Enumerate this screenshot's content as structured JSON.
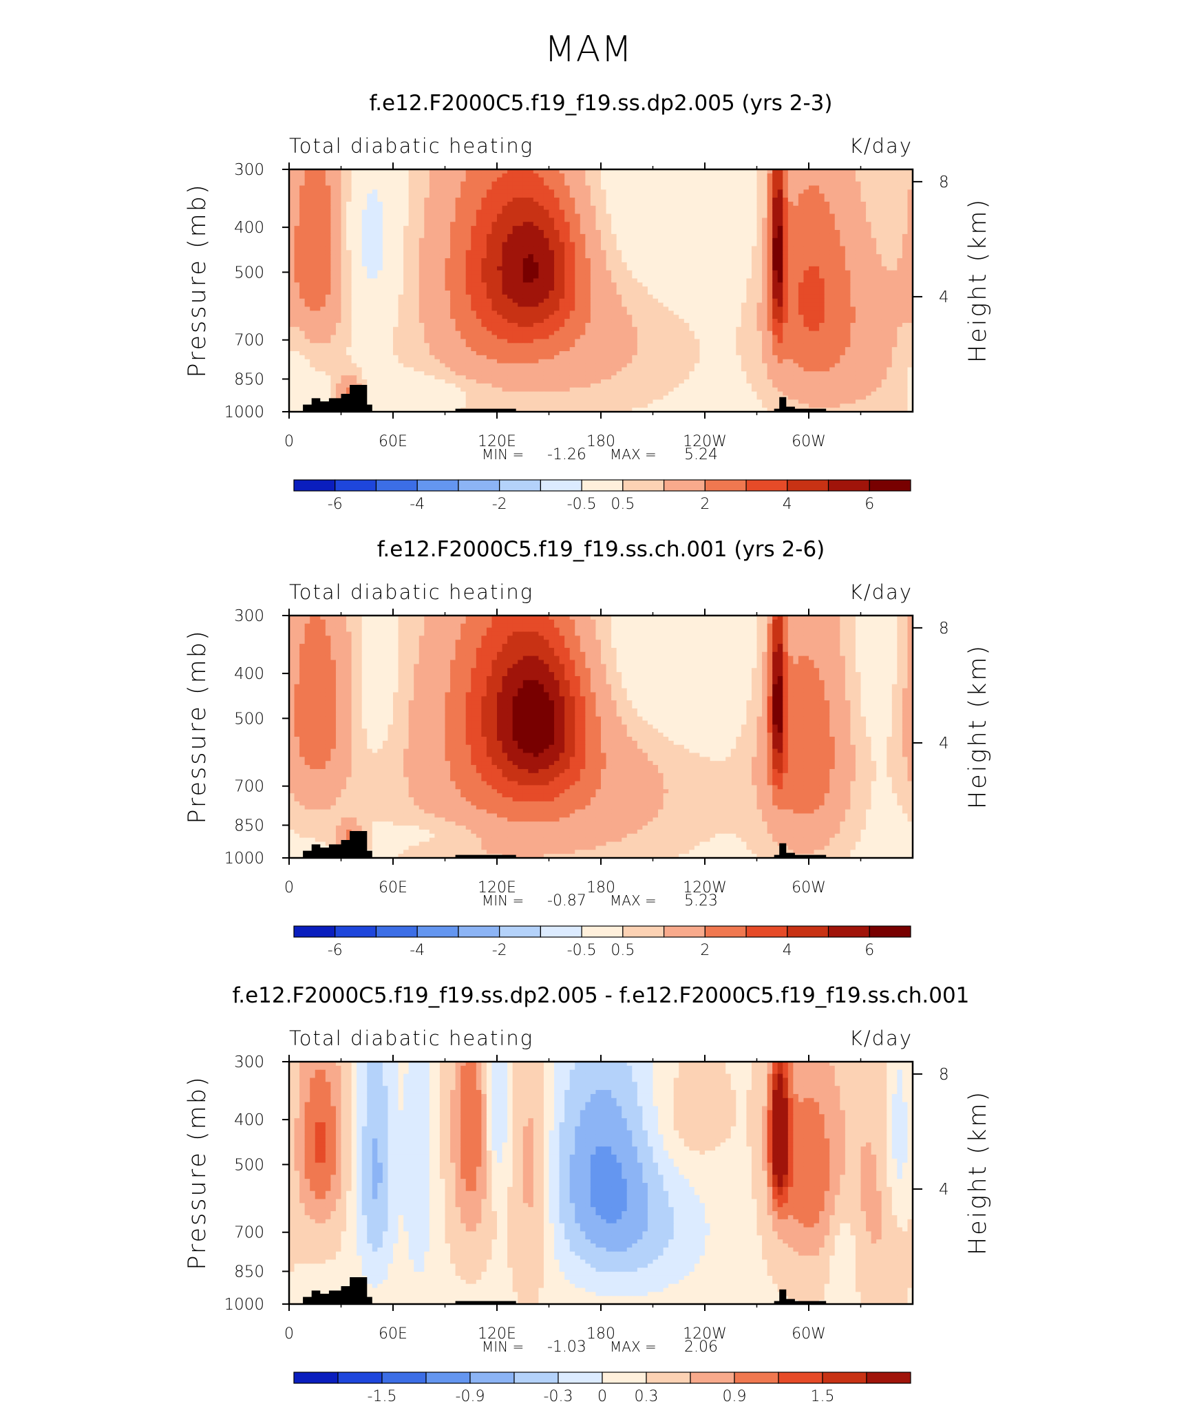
{
  "figure_title": "MAM",
  "chart_data": [
    {
      "type": "heatmap",
      "title": "f.e12.F2000C5.f19_f19.ss.dp2.005 (yrs 2-3)",
      "left_label": "Total diabatic heating",
      "right_label": "K/day",
      "ylabel": "Pressure (mb)",
      "ylabel_right": "Height (km)",
      "x_ticks": [
        "0",
        "60E",
        "120E",
        "180",
        "120W",
        "60W"
      ],
      "x_tick_values": [
        0,
        60,
        120,
        180,
        240,
        300
      ],
      "xlim": [
        0,
        360
      ],
      "y_ticks": [
        "300",
        "400",
        "500",
        "700",
        "850",
        "1000"
      ],
      "y_tick_values": [
        300,
        400,
        500,
        700,
        850,
        1000
      ],
      "ylim": [
        1000,
        300
      ],
      "right_ticks": [
        "8",
        "4"
      ],
      "right_tick_values": [
        8,
        4
      ],
      "stats_text": {
        "min_label": "MIN =",
        "min": "-1.26",
        "max_label": "MAX =",
        "max": "5.24"
      },
      "colorbar_labels": [
        "-6",
        "-4",
        "-2",
        "-0.5",
        "0.5",
        "2",
        "4",
        "6"
      ],
      "colorbar_levels": [
        -7,
        -6,
        -5,
        -4,
        -3,
        -2,
        -1,
        -0.5,
        0.5,
        1,
        2,
        3,
        4,
        5,
        6,
        7
      ],
      "colorbar_label_positions": [
        1,
        3,
        5,
        7,
        8,
        10,
        12,
        14
      ],
      "features": [
        {
          "lon": 15,
          "p": 440,
          "amp": 2.6,
          "slon": 12,
          "sp": 180
        },
        {
          "lon": 35,
          "p": 920,
          "amp": 2.2,
          "slon": 5,
          "sp": 60
        },
        {
          "lon": 48,
          "p": 430,
          "amp": -1.26,
          "slon": 10,
          "sp": 120
        },
        {
          "lon": 105,
          "p": 500,
          "amp": 0.6,
          "slon": 30,
          "sp": 300
        },
        {
          "lon": 120,
          "p": 470,
          "amp": 2.2,
          "slon": 22,
          "sp": 190
        },
        {
          "lon": 145,
          "p": 480,
          "amp": 3.6,
          "slon": 18,
          "sp": 130
        },
        {
          "lon": 160,
          "p": 680,
          "amp": 1.2,
          "slon": 45,
          "sp": 200
        },
        {
          "lon": 225,
          "p": 400,
          "amp": -0.7,
          "slon": 35,
          "sp": 130
        },
        {
          "lon": 80,
          "p": 900,
          "amp": -0.55,
          "slon": 25,
          "sp": 50
        },
        {
          "lon": 5,
          "p": 740,
          "amp": -0.5,
          "slon": 8,
          "sp": 110
        },
        {
          "lon": 282,
          "p": 440,
          "amp": 5.24,
          "slon": 3,
          "sp": 160
        },
        {
          "lon": 300,
          "p": 560,
          "amp": 2.8,
          "slon": 18,
          "sp": 240
        },
        {
          "lon": 335,
          "p": 700,
          "amp": 0.9,
          "slon": 20,
          "sp": 250
        },
        {
          "lon": 355,
          "p": 360,
          "amp": -0.3,
          "slon": 8,
          "sp": 80
        }
      ],
      "terrain": [
        [
          0,
          1000
        ],
        [
          8,
          1000
        ],
        [
          8,
          965
        ],
        [
          13,
          965
        ],
        [
          13,
          935
        ],
        [
          18,
          935
        ],
        [
          18,
          950
        ],
        [
          23,
          950
        ],
        [
          23,
          935
        ],
        [
          30,
          935
        ],
        [
          30,
          915
        ],
        [
          35,
          915
        ],
        [
          35,
          875
        ],
        [
          45,
          875
        ],
        [
          45,
          965
        ],
        [
          48,
          965
        ],
        [
          48,
          1000
        ],
        [
          96,
          1000
        ],
        [
          96,
          985
        ],
        [
          131,
          985
        ],
        [
          131,
          1000
        ],
        [
          280,
          1000
        ],
        [
          280,
          985
        ],
        [
          283,
          985
        ],
        [
          283,
          930
        ],
        [
          287,
          930
        ],
        [
          287,
          975
        ],
        [
          292,
          975
        ],
        [
          292,
          985
        ],
        [
          310,
          985
        ],
        [
          310,
          1000
        ],
        [
          360,
          1000
        ]
      ]
    },
    {
      "type": "heatmap",
      "title": "f.e12.F2000C5.f19_f19.ss.ch.001 (yrs 2-6)",
      "left_label": "Total diabatic heating",
      "right_label": "K/day",
      "ylabel": "Pressure (mb)",
      "ylabel_right": "Height (km)",
      "x_ticks": [
        "0",
        "60E",
        "120E",
        "180",
        "120W",
        "60W"
      ],
      "x_tick_values": [
        0,
        60,
        120,
        180,
        240,
        300
      ],
      "xlim": [
        0,
        360
      ],
      "y_ticks": [
        "300",
        "400",
        "500",
        "700",
        "850",
        "1000"
      ],
      "y_tick_values": [
        300,
        400,
        500,
        700,
        850,
        1000
      ],
      "ylim": [
        1000,
        300
      ],
      "right_ticks": [
        "8",
        "4"
      ],
      "right_tick_values": [
        8,
        4
      ],
      "stats_text": {
        "min_label": "MIN =",
        "min": "-0.87",
        "max_label": "MAX =",
        "max": "5.23"
      },
      "colorbar_labels": [
        "-6",
        "-4",
        "-2",
        "-0.5",
        "0.5",
        "2",
        "4",
        "6"
      ],
      "colorbar_levels": [
        -7,
        -6,
        -5,
        -4,
        -3,
        -2,
        -1,
        -0.5,
        0.5,
        1,
        2,
        3,
        4,
        5,
        6,
        7
      ],
      "colorbar_label_positions": [
        1,
        3,
        5,
        7,
        8,
        10,
        12,
        14
      ],
      "features": [
        {
          "lon": 15,
          "p": 470,
          "amp": 2.5,
          "slon": 14,
          "sp": 200
        },
        {
          "lon": 35,
          "p": 920,
          "amp": 2.0,
          "slon": 5,
          "sp": 60
        },
        {
          "lon": 50,
          "p": 420,
          "amp": -0.7,
          "slon": 9,
          "sp": 120
        },
        {
          "lon": 110,
          "p": 560,
          "amp": 1.0,
          "slon": 40,
          "sp": 320
        },
        {
          "lon": 125,
          "p": 450,
          "amp": 2.2,
          "slon": 22,
          "sp": 180
        },
        {
          "lon": 147,
          "p": 500,
          "amp": 3.8,
          "slon": 18,
          "sp": 140
        },
        {
          "lon": 165,
          "p": 700,
          "amp": 1.3,
          "slon": 50,
          "sp": 210
        },
        {
          "lon": 225,
          "p": 390,
          "amp": -0.87,
          "slon": 30,
          "sp": 120
        },
        {
          "lon": 90,
          "p": 880,
          "amp": -0.5,
          "slon": 25,
          "sp": 50
        },
        {
          "lon": 282,
          "p": 450,
          "amp": 5.23,
          "slon": 3,
          "sp": 150
        },
        {
          "lon": 298,
          "p": 580,
          "amp": 2.6,
          "slon": 18,
          "sp": 250
        },
        {
          "lon": 340,
          "p": 420,
          "amp": -0.3,
          "slon": 18,
          "sp": 100
        }
      ],
      "terrain": [
        [
          0,
          1000
        ],
        [
          8,
          1000
        ],
        [
          8,
          965
        ],
        [
          13,
          965
        ],
        [
          13,
          935
        ],
        [
          18,
          935
        ],
        [
          18,
          950
        ],
        [
          23,
          950
        ],
        [
          23,
          935
        ],
        [
          30,
          935
        ],
        [
          30,
          915
        ],
        [
          35,
          915
        ],
        [
          35,
          875
        ],
        [
          45,
          875
        ],
        [
          45,
          965
        ],
        [
          48,
          965
        ],
        [
          48,
          1000
        ],
        [
          96,
          1000
        ],
        [
          96,
          985
        ],
        [
          131,
          985
        ],
        [
          131,
          1000
        ],
        [
          280,
          1000
        ],
        [
          280,
          985
        ],
        [
          283,
          985
        ],
        [
          283,
          930
        ],
        [
          287,
          930
        ],
        [
          287,
          975
        ],
        [
          292,
          975
        ],
        [
          292,
          985
        ],
        [
          310,
          985
        ],
        [
          310,
          1000
        ],
        [
          360,
          1000
        ]
      ]
    },
    {
      "type": "heatmap",
      "title": "f.e12.F2000C5.f19_f19.ss.dp2.005 - f.e12.F2000C5.f19_f19.ss.ch.001",
      "left_label": "Total diabatic heating",
      "right_label": "K/day",
      "ylabel": "Pressure (mb)",
      "ylabel_right": "Height (km)",
      "x_ticks": [
        "0",
        "60E",
        "120E",
        "180",
        "120W",
        "60W"
      ],
      "x_tick_values": [
        0,
        60,
        120,
        180,
        240,
        300
      ],
      "xlim": [
        0,
        360
      ],
      "y_ticks": [
        "300",
        "400",
        "500",
        "700",
        "850",
        "1000"
      ],
      "y_tick_values": [
        300,
        400,
        500,
        700,
        850,
        1000
      ],
      "ylim": [
        1000,
        300
      ],
      "right_ticks": [
        "8",
        "4"
      ],
      "right_tick_values": [
        8,
        4
      ],
      "stats_text": {
        "min_label": "MIN =",
        "min": "-1.03",
        "max_label": "MAX =",
        "max": "2.06"
      },
      "colorbar_labels": [
        "-1.5",
        "-0.9",
        "-0.3",
        "0",
        "0.3",
        "0.9",
        "1.5"
      ],
      "colorbar_levels": [
        -2.1,
        -1.8,
        -1.5,
        -1.2,
        -0.9,
        -0.6,
        -0.3,
        0,
        0.3,
        0.6,
        0.9,
        1.2,
        1.5,
        1.8,
        2.1
      ],
      "colorbar_label_positions": [
        2,
        4,
        6,
        7,
        8,
        10,
        12
      ],
      "features": [
        {
          "lon": 18,
          "p": 450,
          "amp": 1.0,
          "slon": 10,
          "sp": 150
        },
        {
          "lon": 50,
          "p": 520,
          "amp": -0.9,
          "slon": 8,
          "sp": 250
        },
        {
          "lon": 75,
          "p": 500,
          "amp": -0.5,
          "slon": 6,
          "sp": 300
        },
        {
          "lon": 105,
          "p": 420,
          "amp": 0.9,
          "slon": 8,
          "sp": 200
        },
        {
          "lon": 120,
          "p": 380,
          "amp": -0.6,
          "slon": 5,
          "sp": 120
        },
        {
          "lon": 140,
          "p": 520,
          "amp": 0.6,
          "slon": 8,
          "sp": 250
        },
        {
          "lon": 180,
          "p": 500,
          "amp": -1.03,
          "slon": 22,
          "sp": 220
        },
        {
          "lon": 205,
          "p": 700,
          "amp": -0.5,
          "slon": 30,
          "sp": 180
        },
        {
          "lon": 230,
          "p": 400,
          "amp": 0.35,
          "slon": 15,
          "sp": 80
        },
        {
          "lon": 283,
          "p": 430,
          "amp": 2.06,
          "slon": 4,
          "sp": 110
        },
        {
          "lon": 300,
          "p": 520,
          "amp": 0.9,
          "slon": 15,
          "sp": 200
        },
        {
          "lon": 320,
          "p": 750,
          "amp": -0.4,
          "slon": 6,
          "sp": 150
        },
        {
          "lon": 352,
          "p": 450,
          "amp": -0.6,
          "slon": 6,
          "sp": 150
        },
        {
          "lon": 340,
          "p": 600,
          "amp": 0.4,
          "slon": 12,
          "sp": 250
        }
      ],
      "terrain": [
        [
          0,
          1000
        ],
        [
          8,
          1000
        ],
        [
          8,
          965
        ],
        [
          13,
          965
        ],
        [
          13,
          935
        ],
        [
          18,
          935
        ],
        [
          18,
          950
        ],
        [
          23,
          950
        ],
        [
          23,
          935
        ],
        [
          30,
          935
        ],
        [
          30,
          915
        ],
        [
          35,
          915
        ],
        [
          35,
          875
        ],
        [
          45,
          875
        ],
        [
          45,
          965
        ],
        [
          48,
          965
        ],
        [
          48,
          1000
        ],
        [
          96,
          1000
        ],
        [
          96,
          985
        ],
        [
          131,
          985
        ],
        [
          131,
          1000
        ],
        [
          280,
          1000
        ],
        [
          280,
          985
        ],
        [
          283,
          985
        ],
        [
          283,
          930
        ],
        [
          287,
          930
        ],
        [
          287,
          975
        ],
        [
          292,
          975
        ],
        [
          292,
          985
        ],
        [
          310,
          985
        ],
        [
          310,
          1000
        ],
        [
          360,
          1000
        ]
      ]
    }
  ],
  "colormap": [
    "#00008c",
    "#0a1ebe",
    "#1e46dc",
    "#3c6ee6",
    "#6496f0",
    "#8cb4f5",
    "#b4d2fa",
    "#dcebff",
    "#fff0dc",
    "#fcd2b4",
    "#f8aa8c",
    "#f07850",
    "#e64b28",
    "#c83214",
    "#a0140a",
    "#780000"
  ]
}
